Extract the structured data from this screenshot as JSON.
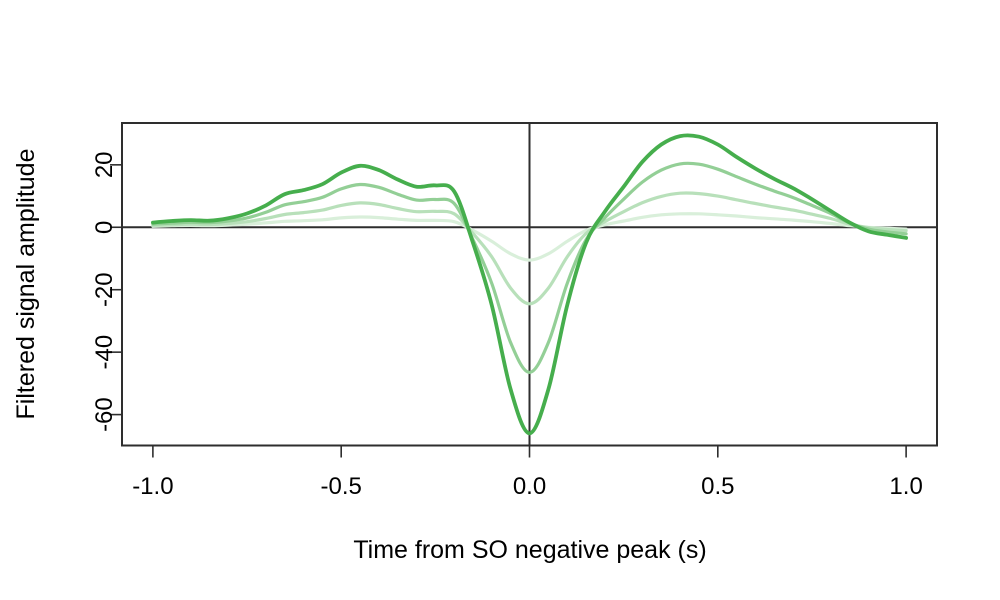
{
  "figure": {
    "background_color": "#ffffff",
    "axis_color": "#2e2e2e",
    "text_color": "#000000"
  },
  "chart_data": {
    "type": "line",
    "title": "",
    "xlabel": "Time from SO negative peak (s)",
    "ylabel": "Filtered signal amplitude",
    "xlim": [
      -1.082,
      1.082
    ],
    "ylim": [
      -69.9,
      33.4
    ],
    "grid": false,
    "legend": "none",
    "reference_lines": {
      "horizontal_y": 0,
      "vertical_x": 0
    },
    "x_ticks": [
      -1.0,
      -0.5,
      0.0,
      0.5,
      1.0
    ],
    "x_tick_labels": [
      "-1.0",
      "-0.5",
      "0.0",
      "0.5",
      "1.0"
    ],
    "y_ticks": [
      -60,
      -40,
      -20,
      0,
      20
    ],
    "y_tick_labels": [
      "-60",
      "-40",
      "-20",
      "0",
      "20"
    ],
    "x": [
      -1.0,
      -0.95,
      -0.9,
      -0.85,
      -0.8,
      -0.75,
      -0.7,
      -0.65,
      -0.6,
      -0.55,
      -0.5,
      -0.45,
      -0.4,
      -0.35,
      -0.3,
      -0.25,
      -0.2,
      -0.15,
      -0.1,
      -0.05,
      0.0,
      0.05,
      0.1,
      0.15,
      0.2,
      0.25,
      0.3,
      0.35,
      0.4,
      0.45,
      0.5,
      0.55,
      0.6,
      0.65,
      0.7,
      0.75,
      0.8,
      0.85,
      0.9,
      0.95,
      1.0
    ],
    "series": [
      {
        "name": "series-1-darkest",
        "color": "#46ae4d",
        "line_width": 3.8,
        "values": [
          1.5,
          2.0,
          2.3,
          2.1,
          2.9,
          4.4,
          7.0,
          10.6,
          11.9,
          13.8,
          17.5,
          19.7,
          18.3,
          15.3,
          13.0,
          13.4,
          11.5,
          -5.0,
          -25.0,
          -52.0,
          -66.0,
          -52.0,
          -25.0,
          -5.0,
          5.0,
          13.0,
          21.0,
          26.5,
          29.2,
          29.0,
          26.5,
          22.5,
          18.8,
          15.5,
          12.5,
          9.0,
          5.2,
          1.5,
          -1.3,
          -2.4,
          -3.4
        ]
      },
      {
        "name": "series-2",
        "color": "#93cf96",
        "line_width": 3.2,
        "values": [
          1.0,
          1.3,
          1.6,
          1.5,
          2.0,
          3.0,
          4.8,
          7.2,
          8.2,
          9.6,
          12.3,
          13.7,
          12.8,
          10.6,
          8.7,
          8.9,
          7.6,
          -4.0,
          -18.0,
          -37.0,
          -46.5,
          -37.0,
          -18.0,
          -4.0,
          3.0,
          9.0,
          14.5,
          18.3,
          20.3,
          20.2,
          18.6,
          16.2,
          13.8,
          11.6,
          9.5,
          7.0,
          4.4,
          1.4,
          -0.6,
          -1.5,
          -2.1
        ]
      },
      {
        "name": "series-3",
        "color": "#b8e0ba",
        "line_width": 3.2,
        "values": [
          0.6,
          0.8,
          1.0,
          0.9,
          1.2,
          1.8,
          2.8,
          4.1,
          4.7,
          5.5,
          7.0,
          7.8,
          7.3,
          6.0,
          5.0,
          5.1,
          4.3,
          -2.0,
          -9.5,
          -19.5,
          -24.5,
          -19.5,
          -9.5,
          -2.0,
          1.8,
          5.0,
          7.9,
          9.9,
          10.9,
          10.8,
          10.0,
          8.8,
          7.6,
          6.5,
          5.5,
          4.2,
          2.8,
          1.0,
          -0.1,
          -0.7,
          -1.1
        ]
      },
      {
        "name": "series-4-lightest",
        "color": "#d9efda",
        "line_width": 3.2,
        "values": [
          0.3,
          0.5,
          0.6,
          0.5,
          0.7,
          1.0,
          1.4,
          1.9,
          2.1,
          2.4,
          3.0,
          3.3,
          3.1,
          2.6,
          2.2,
          2.2,
          1.8,
          -1.0,
          -4.5,
          -8.5,
          -10.5,
          -8.5,
          -4.5,
          -1.0,
          0.8,
          2.0,
          3.2,
          4.0,
          4.3,
          4.3,
          4.0,
          3.6,
          3.1,
          2.7,
          2.3,
          1.8,
          1.2,
          0.5,
          0.0,
          -0.3,
          -0.6
        ]
      }
    ]
  }
}
